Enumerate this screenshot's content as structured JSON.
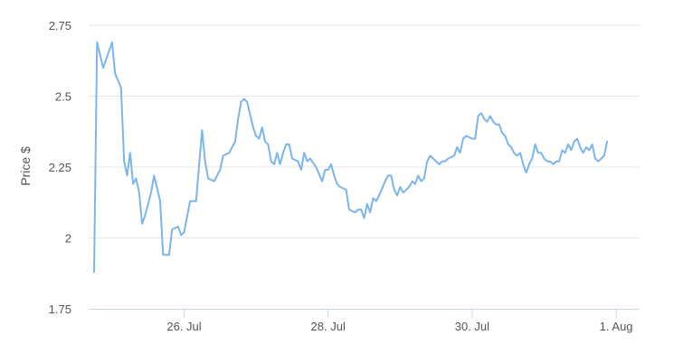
{
  "chart_data": {
    "type": "line",
    "title": "",
    "xlabel": "",
    "ylabel": "Price $",
    "ylim": [
      1.75,
      2.75
    ],
    "yticks": [
      {
        "value": 1.75,
        "label": "1.75"
      },
      {
        "value": 2.0,
        "label": "2"
      },
      {
        "value": 2.25,
        "label": "2.25"
      },
      {
        "value": 2.5,
        "label": "2.5"
      },
      {
        "value": 2.75,
        "label": "2.75"
      }
    ],
    "xticks": [
      {
        "value": "2024-07-26",
        "label": "26. Jul"
      },
      {
        "value": "2024-07-28",
        "label": "28. Jul"
      },
      {
        "value": "2024-07-30",
        "label": "30. Jul"
      },
      {
        "value": "2024-08-01",
        "label": "1. Aug"
      }
    ],
    "xlim": [
      "2024-07-24T18:00",
      "2024-08-01T06:00"
    ],
    "grid": true,
    "line_color": "#7cb5ec",
    "series": [
      {
        "points": [
          [
            "2024-07-24T18:00",
            1.88
          ],
          [
            "2024-07-24T19:00",
            2.69
          ],
          [
            "2024-07-24T21:00",
            2.6
          ],
          [
            "2024-07-25T00:00",
            2.69
          ],
          [
            "2024-07-25T01:00",
            2.58
          ],
          [
            "2024-07-25T03:00",
            2.53
          ],
          [
            "2024-07-25T04:00",
            2.27
          ],
          [
            "2024-07-25T05:00",
            2.22
          ],
          [
            "2024-07-25T06:00",
            2.3
          ],
          [
            "2024-07-25T07:00",
            2.19
          ],
          [
            "2024-07-25T08:00",
            2.21
          ],
          [
            "2024-07-25T09:00",
            2.16
          ],
          [
            "2024-07-25T10:00",
            2.05
          ],
          [
            "2024-07-25T11:00",
            2.08
          ],
          [
            "2024-07-25T13:00",
            2.16
          ],
          [
            "2024-07-25T14:00",
            2.22
          ],
          [
            "2024-07-25T16:00",
            2.13
          ],
          [
            "2024-07-25T17:00",
            1.94
          ],
          [
            "2024-07-25T19:00",
            1.94
          ],
          [
            "2024-07-25T20:00",
            2.03
          ],
          [
            "2024-07-25T22:00",
            2.04
          ],
          [
            "2024-07-25T23:00",
            2.01
          ],
          [
            "2024-07-26T00:00",
            2.02
          ],
          [
            "2024-07-26T02:00",
            2.13
          ],
          [
            "2024-07-26T04:00",
            2.13
          ],
          [
            "2024-07-26T05:00",
            2.26
          ],
          [
            "2024-07-26T06:00",
            2.38
          ],
          [
            "2024-07-26T07:00",
            2.27
          ],
          [
            "2024-07-26T08:00",
            2.21
          ],
          [
            "2024-07-26T10:00",
            2.2
          ],
          [
            "2024-07-26T12:00",
            2.24
          ],
          [
            "2024-07-26T13:00",
            2.29
          ],
          [
            "2024-07-26T15:00",
            2.3
          ],
          [
            "2024-07-26T16:00",
            2.32
          ],
          [
            "2024-07-26T17:00",
            2.34
          ],
          [
            "2024-07-26T18:00",
            2.42
          ],
          [
            "2024-07-26T19:00",
            2.48
          ],
          [
            "2024-07-26T20:00",
            2.49
          ],
          [
            "2024-07-26T21:00",
            2.48
          ],
          [
            "2024-07-26T23:00",
            2.39
          ],
          [
            "2024-07-27T00:00",
            2.36
          ],
          [
            "2024-07-27T01:00",
            2.35
          ],
          [
            "2024-07-27T02:00",
            2.39
          ],
          [
            "2024-07-27T03:00",
            2.34
          ],
          [
            "2024-07-27T04:00",
            2.33
          ],
          [
            "2024-07-27T05:00",
            2.27
          ],
          [
            "2024-07-27T06:00",
            2.26
          ],
          [
            "2024-07-27T07:00",
            2.3
          ],
          [
            "2024-07-27T08:00",
            2.26
          ],
          [
            "2024-07-27T09:00",
            2.3
          ],
          [
            "2024-07-27T10:00",
            2.33
          ],
          [
            "2024-07-27T11:00",
            2.33
          ],
          [
            "2024-07-27T12:00",
            2.28
          ],
          [
            "2024-07-27T14:00",
            2.27
          ],
          [
            "2024-07-27T15:00",
            2.24
          ],
          [
            "2024-07-27T16:00",
            2.3
          ],
          [
            "2024-07-27T17:00",
            2.27
          ],
          [
            "2024-07-27T18:00",
            2.28
          ],
          [
            "2024-07-27T20:00",
            2.25
          ],
          [
            "2024-07-27T22:00",
            2.2
          ],
          [
            "2024-07-27T23:00",
            2.24
          ],
          [
            "2024-07-28T00:00",
            2.24
          ],
          [
            "2024-07-28T01:00",
            2.26
          ],
          [
            "2024-07-28T02:00",
            2.22
          ],
          [
            "2024-07-28T03:00",
            2.19
          ],
          [
            "2024-07-28T04:00",
            2.18
          ],
          [
            "2024-07-28T06:00",
            2.17
          ],
          [
            "2024-07-28T07:00",
            2.1
          ],
          [
            "2024-07-28T09:00",
            2.09
          ],
          [
            "2024-07-28T10:00",
            2.1
          ],
          [
            "2024-07-28T11:00",
            2.1
          ],
          [
            "2024-07-28T12:00",
            2.07
          ],
          [
            "2024-07-28T13:00",
            2.12
          ],
          [
            "2024-07-28T14:00",
            2.09
          ],
          [
            "2024-07-28T15:00",
            2.14
          ],
          [
            "2024-07-28T16:00",
            2.13
          ],
          [
            "2024-07-28T17:00",
            2.15
          ],
          [
            "2024-07-28T19:00",
            2.2
          ],
          [
            "2024-07-28T20:00",
            2.22
          ],
          [
            "2024-07-28T21:00",
            2.22
          ],
          [
            "2024-07-28T22:00",
            2.17
          ],
          [
            "2024-07-28T23:00",
            2.15
          ],
          [
            "2024-07-29T00:00",
            2.18
          ],
          [
            "2024-07-29T01:00",
            2.16
          ],
          [
            "2024-07-29T03:00",
            2.18
          ],
          [
            "2024-07-29T04:00",
            2.2
          ],
          [
            "2024-07-29T05:00",
            2.19
          ],
          [
            "2024-07-29T06:00",
            2.22
          ],
          [
            "2024-07-29T07:00",
            2.2
          ],
          [
            "2024-07-29T08:00",
            2.21
          ],
          [
            "2024-07-29T09:00",
            2.27
          ],
          [
            "2024-07-29T10:00",
            2.29
          ],
          [
            "2024-07-29T11:00",
            2.28
          ],
          [
            "2024-07-29T13:00",
            2.26
          ],
          [
            "2024-07-29T14:00",
            2.27
          ],
          [
            "2024-07-29T15:00",
            2.27
          ],
          [
            "2024-07-29T16:00",
            2.28
          ],
          [
            "2024-07-29T18:00",
            2.29
          ],
          [
            "2024-07-29T19:00",
            2.32
          ],
          [
            "2024-07-29T20:00",
            2.3
          ],
          [
            "2024-07-29T21:00",
            2.35
          ],
          [
            "2024-07-29T22:00",
            2.36
          ],
          [
            "2024-07-30T00:00",
            2.35
          ],
          [
            "2024-07-30T01:00",
            2.35
          ],
          [
            "2024-07-30T02:00",
            2.43
          ],
          [
            "2024-07-30T03:00",
            2.44
          ],
          [
            "2024-07-30T04:00",
            2.42
          ],
          [
            "2024-07-30T05:00",
            2.41
          ],
          [
            "2024-07-30T06:00",
            2.43
          ],
          [
            "2024-07-30T07:00",
            2.41
          ],
          [
            "2024-07-30T08:00",
            2.4
          ],
          [
            "2024-07-30T09:00",
            2.4
          ],
          [
            "2024-07-30T10:00",
            2.37
          ],
          [
            "2024-07-30T11:00",
            2.36
          ],
          [
            "2024-07-30T12:00",
            2.33
          ],
          [
            "2024-07-30T13:00",
            2.32
          ],
          [
            "2024-07-30T14:00",
            2.3
          ],
          [
            "2024-07-30T15:00",
            2.29
          ],
          [
            "2024-07-30T16:00",
            2.3
          ],
          [
            "2024-07-30T17:00",
            2.26
          ],
          [
            "2024-07-30T18:00",
            2.23
          ],
          [
            "2024-07-30T19:00",
            2.26
          ],
          [
            "2024-07-30T20:00",
            2.28
          ],
          [
            "2024-07-30T21:00",
            2.33
          ],
          [
            "2024-07-30T22:00",
            2.3
          ],
          [
            "2024-07-30T23:00",
            2.3
          ],
          [
            "2024-07-31T00:00",
            2.28
          ],
          [
            "2024-07-31T01:00",
            2.27
          ],
          [
            "2024-07-31T02:00",
            2.27
          ],
          [
            "2024-07-31T03:00",
            2.26
          ],
          [
            "2024-07-31T04:00",
            2.27
          ],
          [
            "2024-07-31T05:00",
            2.27
          ],
          [
            "2024-07-31T06:00",
            2.31
          ],
          [
            "2024-07-31T07:00",
            2.3
          ],
          [
            "2024-07-31T08:00",
            2.33
          ],
          [
            "2024-07-31T09:00",
            2.31
          ],
          [
            "2024-07-31T10:00",
            2.34
          ],
          [
            "2024-07-31T11:00",
            2.35
          ],
          [
            "2024-07-31T12:00",
            2.32
          ],
          [
            "2024-07-31T13:00",
            2.3
          ],
          [
            "2024-07-31T14:00",
            2.32
          ],
          [
            "2024-07-31T15:00",
            2.31
          ],
          [
            "2024-07-31T16:00",
            2.33
          ],
          [
            "2024-07-31T17:00",
            2.28
          ],
          [
            "2024-07-31T18:00",
            2.27
          ],
          [
            "2024-07-31T19:00",
            2.28
          ],
          [
            "2024-07-31T20:00",
            2.29
          ],
          [
            "2024-07-31T21:00",
            2.34
          ]
        ]
      }
    ]
  }
}
